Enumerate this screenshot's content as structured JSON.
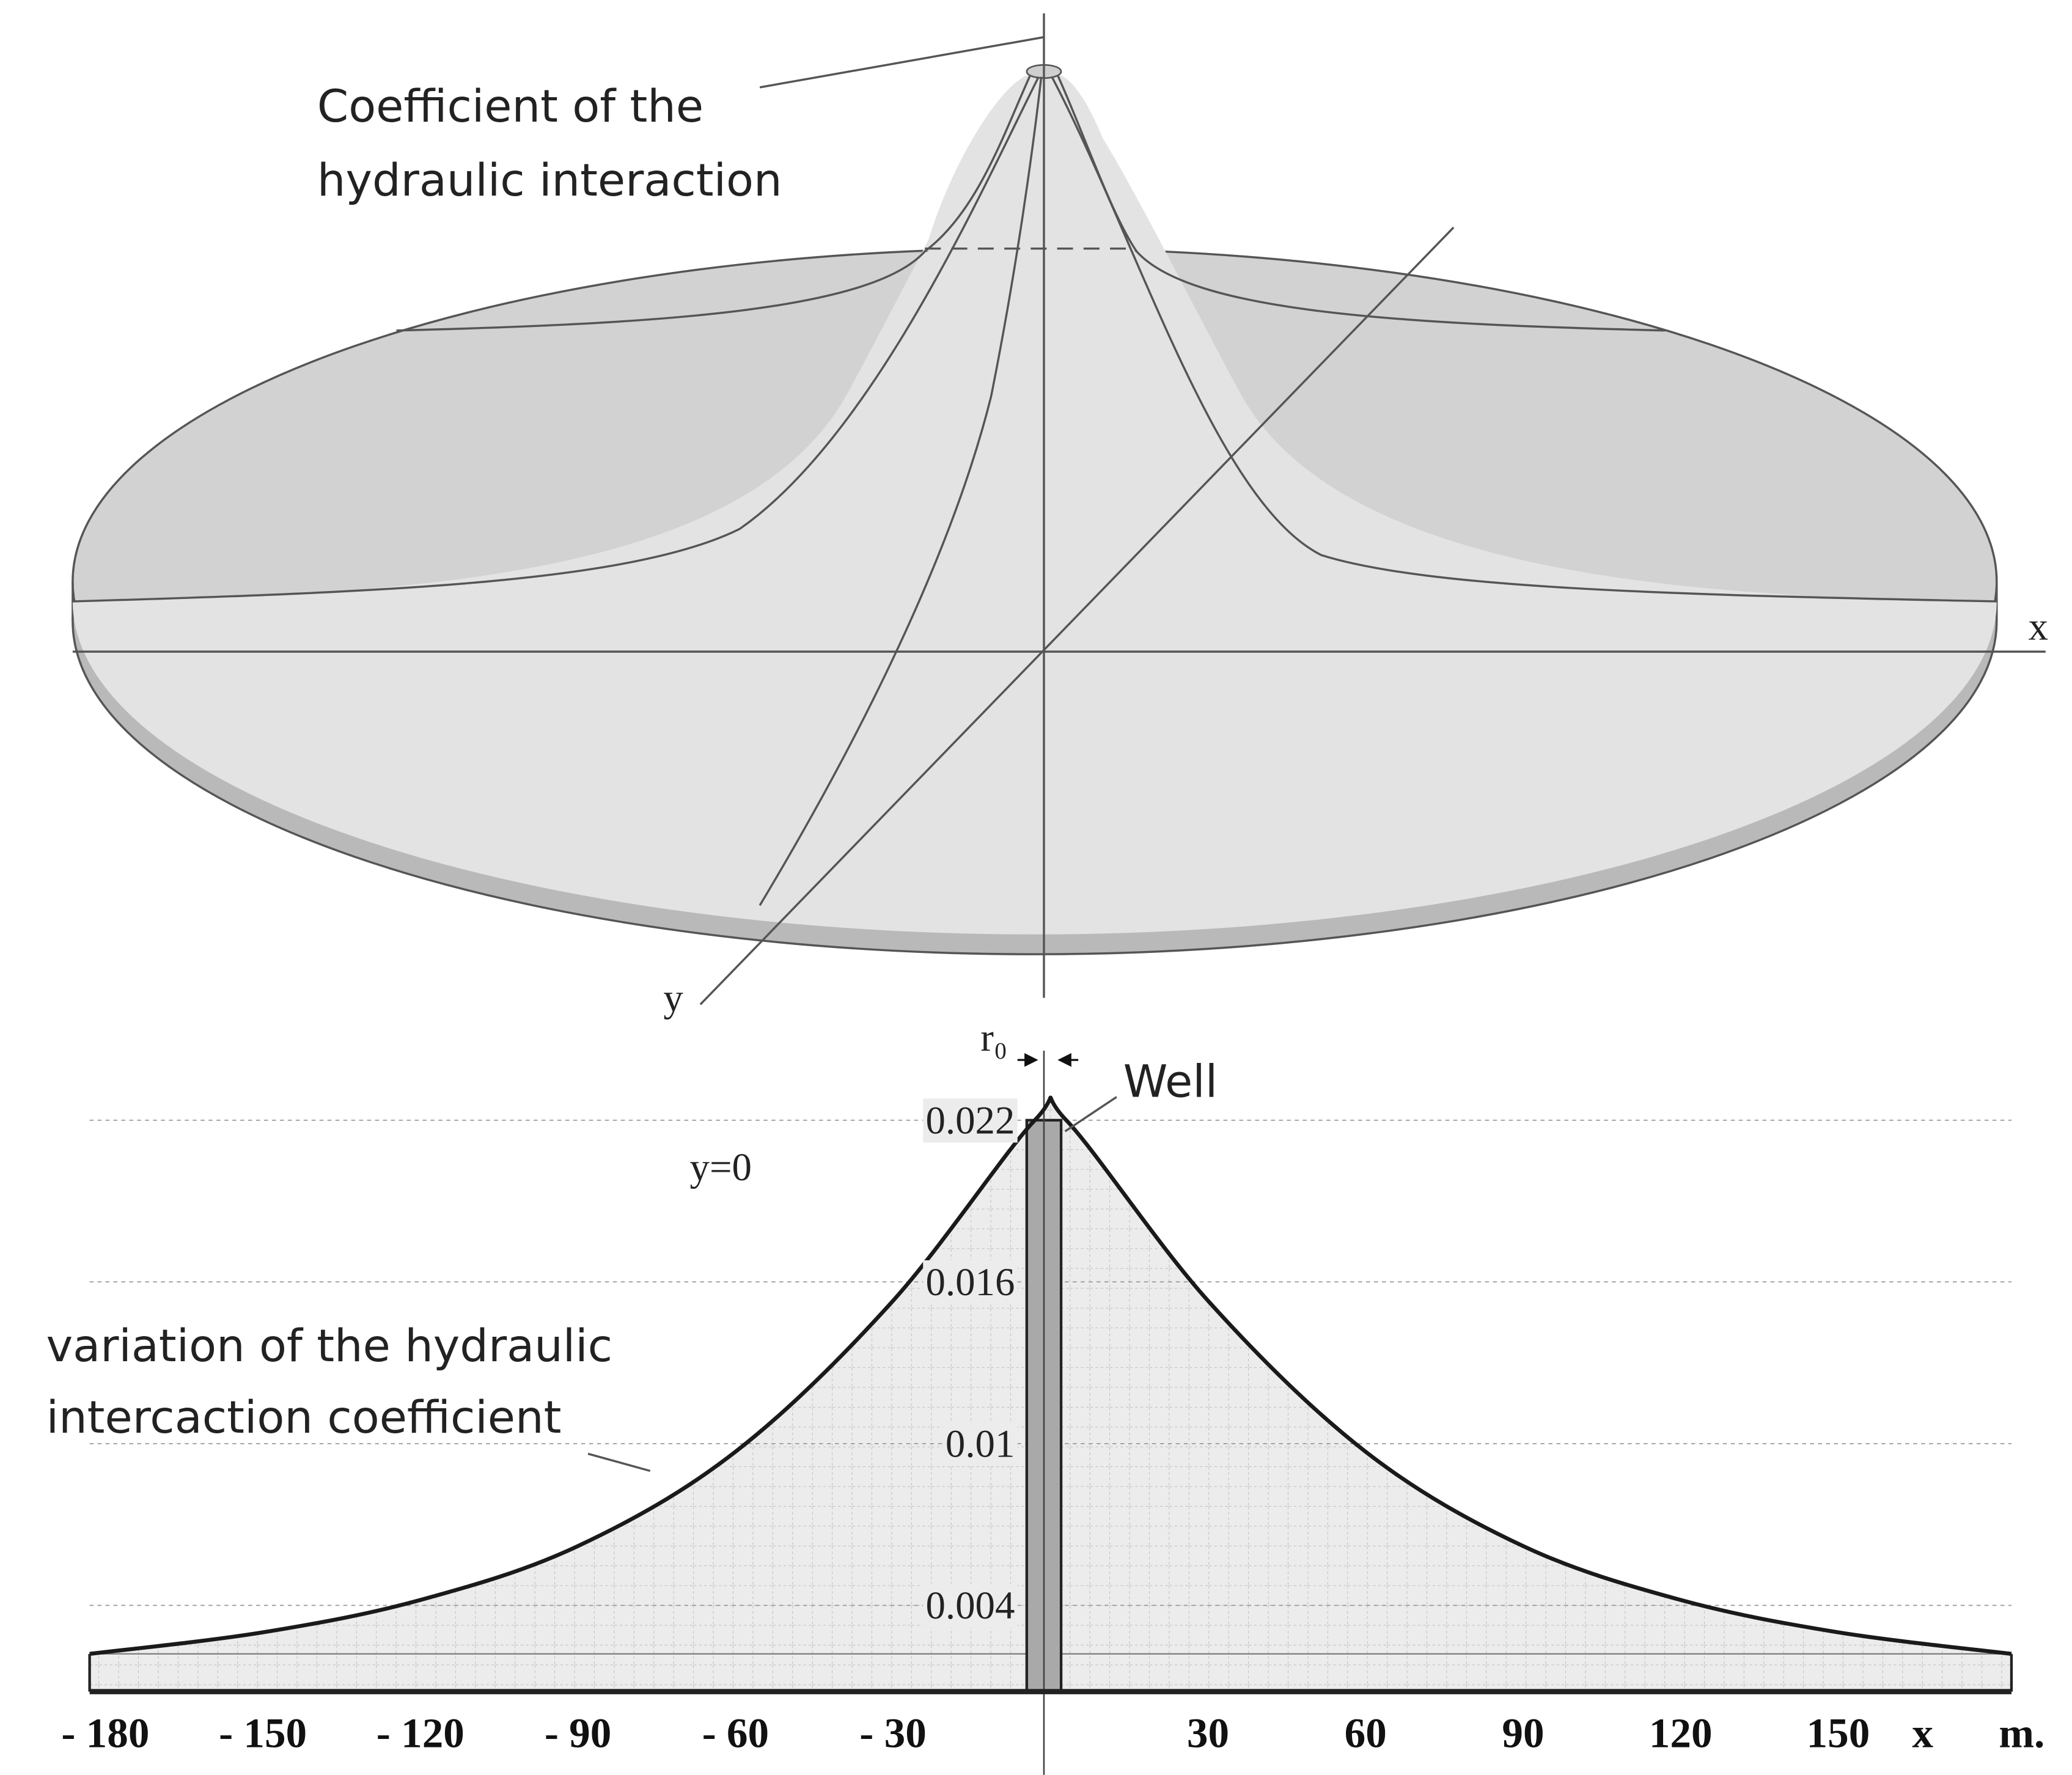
{
  "diagram": {
    "top_label": [
      "Coefficient of the",
      "hydraulic interaction"
    ],
    "x_axis": "x",
    "y_axis": "y"
  },
  "chart_data": {
    "type": "area",
    "subtitle": "y=0",
    "annotations": {
      "radius": "r₀",
      "well": "Well",
      "curve": [
        "variation of the hydraulic",
        "intercaction coefficient"
      ]
    },
    "x_label": "x",
    "x_unit": "m.",
    "x": [
      -183,
      -150,
      -120,
      -90,
      -60,
      -30,
      -3,
      3,
      30,
      60,
      90,
      120,
      150,
      183
    ],
    "values": [
      0.0022,
      0.003,
      0.0042,
      0.0062,
      0.0097,
      0.0153,
      0.022,
      0.022,
      0.0153,
      0.0097,
      0.0062,
      0.0042,
      0.003,
      0.0022
    ],
    "color": "#1a1a1a",
    "xlim": [
      -190,
      190
    ],
    "ylim": [
      0.0008,
      0.0235
    ],
    "xticks": [
      {
        "value": -180,
        "label": "- 180"
      },
      {
        "value": -150,
        "label": "- 150"
      },
      {
        "value": -120,
        "label": "- 120"
      },
      {
        "value": -90,
        "label": "- 90"
      },
      {
        "value": -60,
        "label": "- 60"
      },
      {
        "value": -30,
        "label": "- 30"
      },
      30,
      60,
      90,
      120,
      150
    ],
    "yticks": [
      0.022,
      0.016,
      0.01,
      0.004
    ],
    "grid": true
  }
}
